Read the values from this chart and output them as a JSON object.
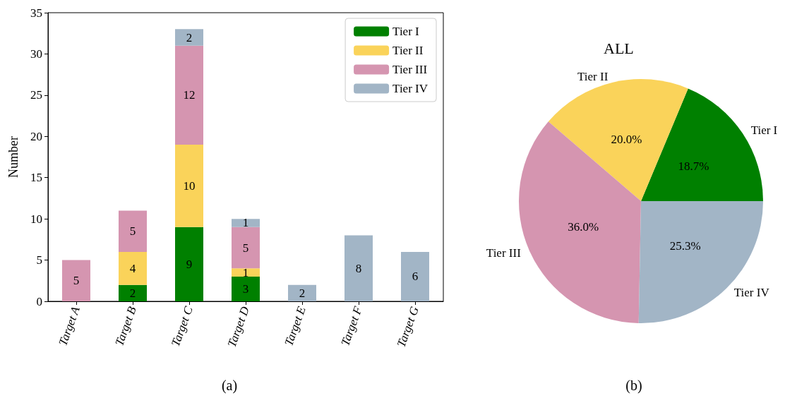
{
  "chart_data": [
    {
      "type": "bar",
      "ylabel": "Number",
      "categories": [
        "Target A",
        "Target B",
        "Target C",
        "Target D",
        "Target E",
        "Target F",
        "Target G"
      ],
      "stacked": true,
      "data_labels": true,
      "ylim": [
        0,
        35
      ],
      "yticks": [
        0,
        5,
        10,
        15,
        20,
        25,
        30,
        35
      ],
      "grid": false,
      "legend": "top right",
      "annotations": [
        "(a)"
      ],
      "series": [
        {
          "name": "Tier I",
          "color": "#008000",
          "values": [
            null,
            2,
            9,
            3,
            null,
            null,
            null
          ]
        },
        {
          "name": "Tier II",
          "color": "#fad35a",
          "values": [
            null,
            4,
            10,
            1,
            null,
            null,
            null
          ]
        },
        {
          "name": "Tier III",
          "color": "#d595b0",
          "values": [
            5,
            5,
            12,
            5,
            null,
            null,
            null
          ]
        },
        {
          "name": "Tier IV",
          "color": "#a2b5c6",
          "values": [
            null,
            null,
            2,
            1,
            2,
            8,
            6
          ]
        }
      ]
    },
    {
      "type": "pie",
      "title": "ALL",
      "categories": [
        "Tier I",
        "Tier II",
        "Tier III",
        "Tier IV"
      ],
      "values": [
        18.7,
        20.0,
        36.0,
        25.3
      ],
      "value_labels": [
        "18.7%",
        "20.0%",
        "36.0%",
        "25.3%"
      ],
      "colors": [
        "#008000",
        "#fad35a",
        "#d595b0",
        "#a2b5c6"
      ],
      "annotations": [
        "(b)"
      ]
    }
  ]
}
